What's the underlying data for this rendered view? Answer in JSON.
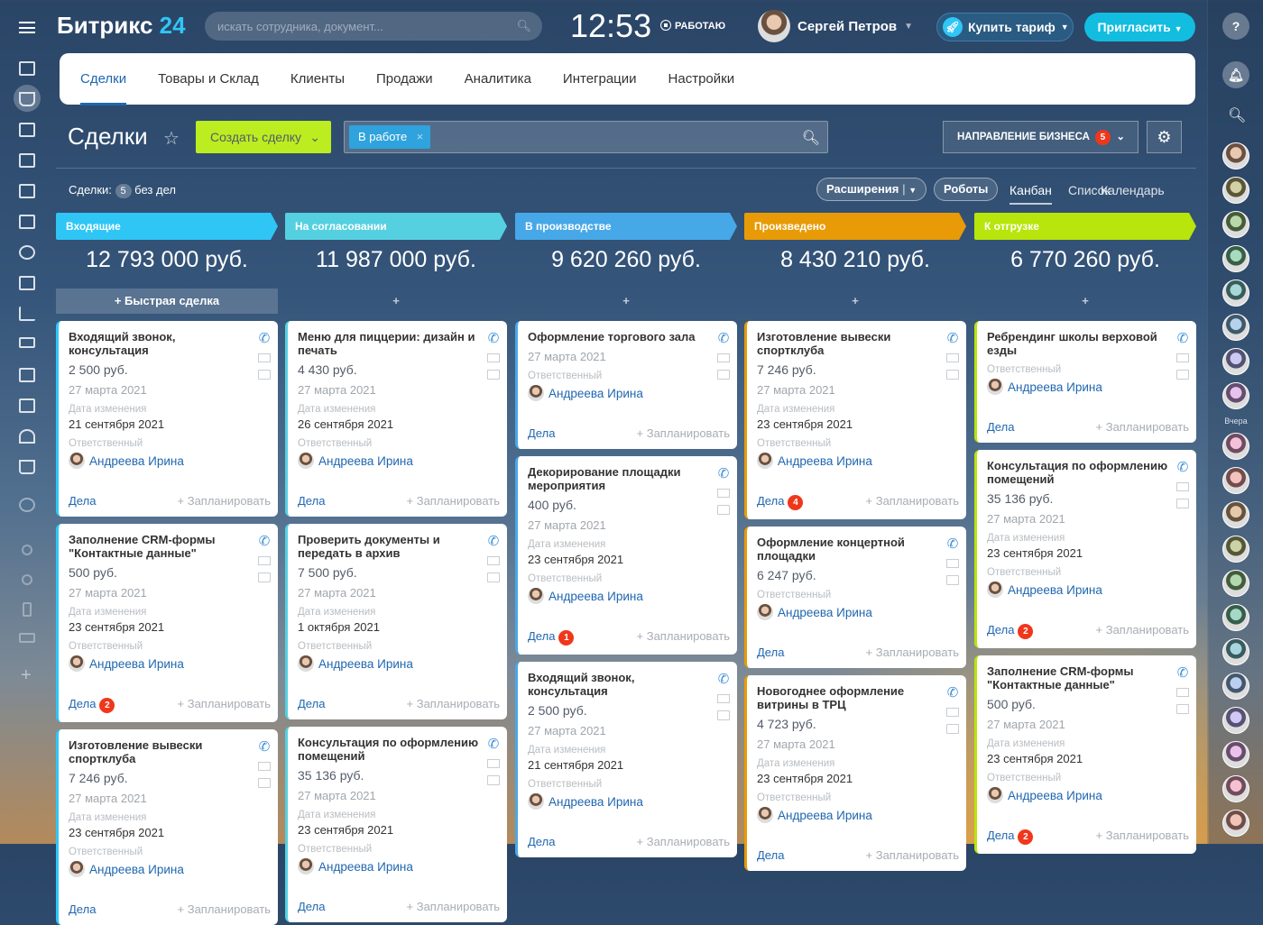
{
  "header": {
    "logo_text": "Битрикс",
    "logo_num": "24",
    "search_placeholder": "искать сотрудника, документ...",
    "time": "12:53",
    "status": "РАБОТАЮ",
    "user_name": "Сергей Петров",
    "buy_label": "Купить тариф",
    "invite_label": "Пригласить"
  },
  "tabs": [
    {
      "label": "Сделки",
      "active": true
    },
    {
      "label": "Товары и Склад"
    },
    {
      "label": "Клиенты"
    },
    {
      "label": "Продажи"
    },
    {
      "label": "Аналитика"
    },
    {
      "label": "Интеграции"
    },
    {
      "label": "Настройки"
    }
  ],
  "toolbar": {
    "title": "Сделки",
    "create_label": "Создать сделку",
    "filter_chip": "В работе",
    "direction_label": "НАПРАВЛЕНИЕ БИЗНЕСА",
    "direction_badge": "5"
  },
  "subbar": {
    "count_prefix": "Сделки:",
    "count": "5",
    "count_suffix": "без дел",
    "extensions": "Расширения",
    "robots": "Роботы",
    "views": [
      "Канбан",
      "Список",
      "Календарь"
    ]
  },
  "labels": {
    "quick_deal": "+ Быстрая сделка",
    "plus": "+",
    "changed": "Дата изменения",
    "responsible": "Ответственный",
    "activities": "Дела",
    "plan": "+ Запланировать"
  },
  "right_sidebar": {
    "yesterday": "Вчера"
  },
  "columns": [
    {
      "name": "Входящие",
      "color": "#2fc6f6",
      "sum": "12 793 000 руб.",
      "cards": [
        {
          "title": "Входящий звонок, консультация",
          "price": "2 500 руб.",
          "date": "27 марта 2021",
          "changed": "21 сентября 2021",
          "person": "Андреева Ирина",
          "badge": ""
        },
        {
          "title": "Заполнение CRM-формы \"Контактные данные\"",
          "price": "500 руб.",
          "date": "27 марта 2021",
          "changed": "23 сентября 2021",
          "person": "Андреева Ирина",
          "badge": "2"
        },
        {
          "title": "Изготовление вывески спортклуба",
          "price": "7 246 руб.",
          "date": "27 марта 2021",
          "changed": "23 сентября 2021",
          "person": "Андреева Ирина",
          "badge": ""
        }
      ]
    },
    {
      "name": "На согласовании",
      "color": "#55d0e0",
      "sum": "11 987 000 руб.",
      "cards": [
        {
          "title": "Меню для пиццерии: дизайн и печать",
          "price": "4 430 руб.",
          "date": "27 марта 2021",
          "changed": "26 сентября 2021",
          "person": "Андреева Ирина",
          "badge": ""
        },
        {
          "title": "Проверить документы и передать в архив",
          "price": "7 500 руб.",
          "date": "27 марта 2021",
          "changed": "1 октября 2021",
          "person": "Андреева Ирина",
          "badge": ""
        },
        {
          "title": "Консультация по оформлению помещений",
          "price": "35 136 руб.",
          "date": "27 марта 2021",
          "changed": "23 сентября 2021",
          "person": "Андреева Ирина",
          "badge": ""
        }
      ]
    },
    {
      "name": "В производстве",
      "color": "#47a8e8",
      "sum": "9 620 260 руб.",
      "cards": [
        {
          "title": "Оформление торгового зала",
          "price": "",
          "date": "27 марта 2021",
          "changed": "",
          "person": "Андреева Ирина",
          "badge": ""
        },
        {
          "title": "Декорирование площадки мероприятия",
          "price": "400 руб.",
          "date": "27 марта 2021",
          "changed": "23 сентября 2021",
          "person": "Андреева Ирина",
          "badge": "1"
        },
        {
          "title": "Входящий звонок, консультация",
          "price": "2 500 руб.",
          "date": "27 марта 2021",
          "changed": "21 сентября 2021",
          "person": "Андреева Ирина",
          "badge": ""
        }
      ]
    },
    {
      "name": "Произведено",
      "color": "#e89b06",
      "sum": "8 430 210 руб.",
      "cards": [
        {
          "title": "Изготовление вывески спортклуба",
          "price": "7 246 руб.",
          "date": "27 марта 2021",
          "changed": "23 сентября 2021",
          "person": "Андреева Ирина",
          "badge": "4"
        },
        {
          "title": "Оформление концертной площадки",
          "price": "6 247 руб.",
          "date": "",
          "changed": "",
          "person": "Андреева Ирина",
          "badge": ""
        },
        {
          "title": "Новогоднее оформление витрины в ТРЦ",
          "price": "4 723 руб.",
          "date": "27 марта 2021",
          "changed": "23 сентября 2021",
          "person": "Андреева Ирина",
          "badge": ""
        }
      ]
    },
    {
      "name": "К отгрузке",
      "color": "#b8e50b",
      "sum": "6 770 260 руб.",
      "cards": [
        {
          "title": "Ребрендинг школы верховой езды",
          "price": "",
          "date": "",
          "changed": "",
          "person": "Андреева Ирина",
          "badge": ""
        },
        {
          "title": "Консультация по оформлению помещений",
          "price": "35 136 руб.",
          "date": "27 марта 2021",
          "changed": "23 сентября 2021",
          "person": "Андреева Ирина",
          "badge": "2"
        },
        {
          "title": "Заполнение CRM-формы \"Контактные данные\"",
          "price": "500 руб.",
          "date": "27 марта 2021",
          "changed": "23 сентября 2021",
          "person": "Андреева Ирина",
          "badge": "2"
        }
      ]
    }
  ]
}
